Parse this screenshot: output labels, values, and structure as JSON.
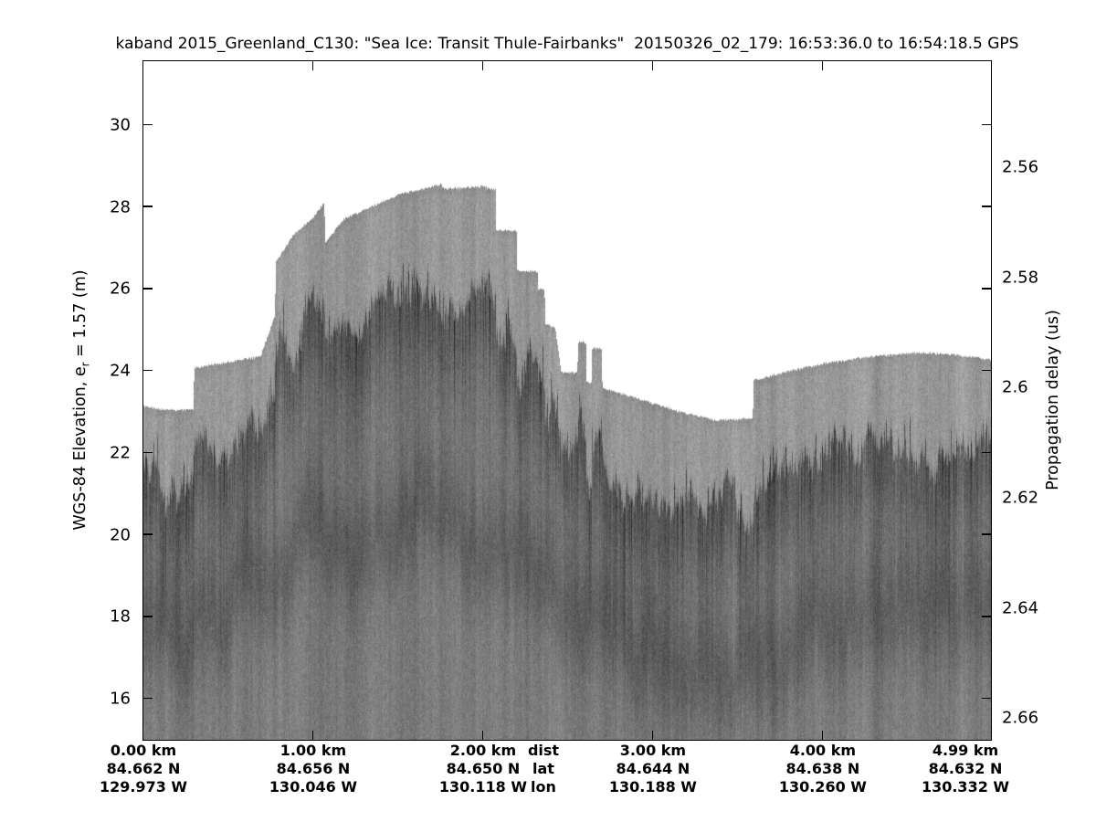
{
  "chart_data": {
    "type": "heatmap",
    "title": "kaband 2015_Greenland_C130: \"Sea Ice: Transit Thule-Fairbanks\"  20150326_02_179: 16:53:36.0 to 16:54:18.5 GPS",
    "left_axis": {
      "label_pre": "WGS-84 Elevation, e",
      "label_sub": "r",
      "label_post": " = 1.57 (m)",
      "tick_labels": [
        "30",
        "28",
        "26",
        "24",
        "22",
        "20",
        "18",
        "16"
      ],
      "tick_values": [
        30,
        28,
        26,
        24,
        22,
        20,
        18,
        16
      ],
      "range": [
        15.0,
        31.56
      ]
    },
    "right_axis": {
      "label": "Propagation delay (us)",
      "tick_labels": [
        "2.56",
        "2.58",
        "2.6",
        "2.62",
        "2.64",
        "2.66"
      ],
      "tick_values": [
        2.56,
        2.58,
        2.6,
        2.62,
        2.64,
        2.66
      ],
      "range": [
        2.5408,
        2.6639
      ]
    },
    "x_axis": {
      "range_km": [
        0,
        4.99
      ],
      "tick_km_marks": [
        0,
        1,
        2,
        3,
        4
      ],
      "columns": [
        {
          "km": "0.00 km",
          "lat": "84.662 N",
          "lon": "129.973 W",
          "km_val": 0
        },
        {
          "km": "1.00 km",
          "lat": "84.656 N",
          "lon": "130.046 W",
          "km_val": 1
        },
        {
          "km": "2.00 km",
          "lat": "84.650 N",
          "lon": "130.118 W",
          "km_val": 2
        },
        {
          "km": "3.00 km",
          "lat": "84.644 N",
          "lon": "130.188 W",
          "km_val": 3
        },
        {
          "km": "4.00 km",
          "lat": "84.638 N",
          "lon": "130.260 W",
          "km_val": 4
        },
        {
          "km": "4.99 km",
          "lat": "84.632 N",
          "lon": "130.332 W",
          "km_val": 4.99
        }
      ],
      "legend": {
        "dist": "dist",
        "lat": "lat",
        "lon": "lon"
      }
    },
    "surface_profile_km_elev": [
      [
        0.0,
        23.15
      ],
      [
        0.1,
        23.07
      ],
      [
        0.2,
        23.04
      ],
      [
        0.295,
        23.07
      ],
      [
        0.3,
        24.07
      ],
      [
        0.5,
        24.22
      ],
      [
        0.69,
        24.35
      ],
      [
        0.775,
        25.35
      ],
      [
        0.78,
        26.65
      ],
      [
        0.88,
        27.3
      ],
      [
        1.0,
        27.75
      ],
      [
        1.065,
        28.1
      ],
      [
        1.072,
        27.15
      ],
      [
        1.18,
        27.7
      ],
      [
        1.31,
        27.95
      ],
      [
        1.5,
        28.3
      ],
      [
        1.65,
        28.45
      ],
      [
        1.75,
        28.55
      ],
      [
        1.77,
        28.44
      ],
      [
        2.0,
        28.5
      ],
      [
        2.073,
        28.42
      ],
      [
        2.078,
        27.45
      ],
      [
        2.197,
        27.42
      ],
      [
        2.202,
        26.45
      ],
      [
        2.32,
        26.42
      ],
      [
        2.325,
        26.0
      ],
      [
        2.362,
        25.98
      ],
      [
        2.367,
        25.15
      ],
      [
        2.425,
        25.05
      ],
      [
        2.46,
        23.97
      ],
      [
        2.555,
        23.95
      ],
      [
        2.56,
        24.7
      ],
      [
        2.605,
        24.7
      ],
      [
        2.61,
        23.73
      ],
      [
        2.638,
        23.72
      ],
      [
        2.643,
        24.55
      ],
      [
        2.698,
        24.55
      ],
      [
        2.703,
        23.58
      ],
      [
        2.97,
        23.25
      ],
      [
        3.16,
        23.0
      ],
      [
        3.37,
        22.8
      ],
      [
        3.51,
        22.82
      ],
      [
        3.588,
        22.86
      ],
      [
        3.593,
        23.78
      ],
      [
        3.78,
        23.97
      ],
      [
        4.0,
        24.18
      ],
      [
        4.3,
        24.36
      ],
      [
        4.59,
        24.45
      ],
      [
        4.8,
        24.38
      ],
      [
        4.99,
        24.28
      ]
    ],
    "dark_layer_depth_km_m": [
      [
        0.0,
        1.7
      ],
      [
        0.3,
        1.9
      ],
      [
        0.78,
        2.3
      ],
      [
        1.1,
        2.5
      ],
      [
        1.6,
        2.7
      ],
      [
        2.08,
        2.6
      ],
      [
        2.46,
        2.0
      ],
      [
        2.7,
        2.1
      ],
      [
        3.1,
        2.4
      ],
      [
        3.4,
        2.4
      ],
      [
        3.6,
        2.1
      ],
      [
        4.0,
        2.3
      ],
      [
        4.6,
        2.3
      ],
      [
        4.99,
        2.2
      ]
    ],
    "deep_band_km_elev": [
      [
        0.0,
        17.6
      ],
      [
        0.35,
        17.9
      ],
      [
        0.8,
        18.9
      ],
      [
        1.3,
        19.9
      ],
      [
        1.62,
        20.3
      ],
      [
        1.9,
        20.2
      ],
      [
        2.3,
        19.3
      ],
      [
        2.7,
        17.9
      ],
      [
        3.1,
        17.0
      ],
      [
        3.5,
        16.9
      ],
      [
        3.9,
        17.6
      ],
      [
        4.4,
        18.3
      ],
      [
        4.99,
        18.55
      ]
    ],
    "colors": {
      "background": "#ffffff",
      "ink": "#000000",
      "echo_light": "#999999",
      "echo_mid": "#7e7e7e",
      "echo_dark": "#3c3c3c"
    },
    "grid": false,
    "legend_position": "none"
  }
}
